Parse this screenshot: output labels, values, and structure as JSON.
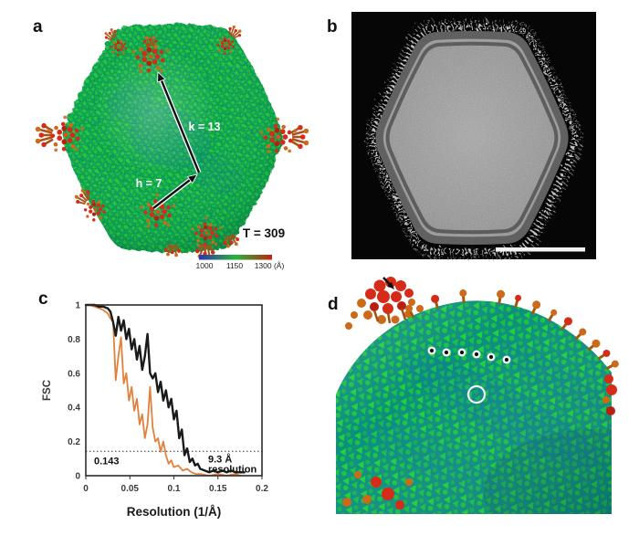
{
  "figure": {
    "panels": {
      "a": {
        "label": "a",
        "annotations": {
          "k": "k = 13",
          "h": "h = 7",
          "t_number": "T = 309"
        },
        "colorbar": {
          "labels": [
            "1000",
            "1150",
            "1300 (Å)"
          ],
          "colors": [
            "#2b35b0",
            "#28b43c",
            "#c22311"
          ]
        }
      },
      "b": {
        "label": "b"
      },
      "c": {
        "label": "c"
      },
      "d": {
        "label": "d"
      }
    }
  },
  "chart_data": {
    "type": "line",
    "title": "",
    "xlabel": "Resolution (1/Å)",
    "ylabel": "FSC",
    "xlim": [
      0,
      0.2
    ],
    "ylim": [
      0,
      1
    ],
    "xticks": [
      0,
      0.05,
      0.1,
      0.15,
      0.2
    ],
    "yticks": [
      0,
      0.2,
      0.4,
      0.6,
      0.8,
      1
    ],
    "grid": false,
    "legend": "none",
    "threshold_line": {
      "y": 0.143,
      "label": "0.143",
      "style": "dotted"
    },
    "annotation_lines": [
      "9.3 Å",
      "resolution"
    ],
    "series": [
      {
        "name": "FSC black curve",
        "color": "#1a1a1a",
        "width": 2.4,
        "x": [
          0,
          0.005,
          0.01,
          0.015,
          0.02,
          0.025,
          0.028,
          0.031,
          0.034,
          0.037,
          0.04,
          0.043,
          0.046,
          0.049,
          0.052,
          0.055,
          0.058,
          0.061,
          0.064,
          0.067,
          0.07,
          0.073,
          0.076,
          0.079,
          0.082,
          0.085,
          0.088,
          0.091,
          0.094,
          0.097,
          0.1,
          0.103,
          0.106,
          0.109,
          0.112,
          0.115,
          0.118,
          0.121,
          0.124,
          0.127,
          0.13,
          0.135,
          0.14,
          0.145,
          0.15,
          0.155,
          0.16,
          0.165,
          0.17,
          0.175,
          0.18
        ],
        "y": [
          1,
          1,
          1,
          0.99,
          0.99,
          0.98,
          0.96,
          0.9,
          0.82,
          0.93,
          0.85,
          0.91,
          0.8,
          0.86,
          0.74,
          0.8,
          0.68,
          0.76,
          0.62,
          0.7,
          0.83,
          0.6,
          0.57,
          0.6,
          0.49,
          0.55,
          0.44,
          0.5,
          0.4,
          0.45,
          0.33,
          0.38,
          0.22,
          0.27,
          0.12,
          0.16,
          0.08,
          0.1,
          0.06,
          0.07,
          0.04,
          0.03,
          0.02,
          0.03,
          0.02,
          0.03,
          0.02,
          0.03,
          0.02,
          0.02,
          0.02
        ]
      },
      {
        "name": "FSC orange curve",
        "color": "#e2813b",
        "width": 1.8,
        "x": [
          0,
          0.005,
          0.01,
          0.015,
          0.02,
          0.025,
          0.028,
          0.031,
          0.034,
          0.037,
          0.04,
          0.043,
          0.046,
          0.049,
          0.052,
          0.055,
          0.058,
          0.061,
          0.064,
          0.067,
          0.07,
          0.073,
          0.076,
          0.079,
          0.082,
          0.085,
          0.088,
          0.091,
          0.094,
          0.097,
          0.1,
          0.105,
          0.11,
          0.115,
          0.12,
          0.125,
          0.13,
          0.14,
          0.15,
          0.16,
          0.17,
          0.175
        ],
        "y": [
          1,
          1,
          0.99,
          0.98,
          0.97,
          0.95,
          0.92,
          0.9,
          0.56,
          0.7,
          0.81,
          0.54,
          0.6,
          0.44,
          0.52,
          0.38,
          0.45,
          0.3,
          0.36,
          0.22,
          0.3,
          0.52,
          0.28,
          0.2,
          0.22,
          0.14,
          0.2,
          0.12,
          0.07,
          0.09,
          0.05,
          0.06,
          0.03,
          0.04,
          0.02,
          0.01,
          0.01,
          0,
          0.01,
          0,
          0.01,
          0
        ]
      }
    ]
  }
}
